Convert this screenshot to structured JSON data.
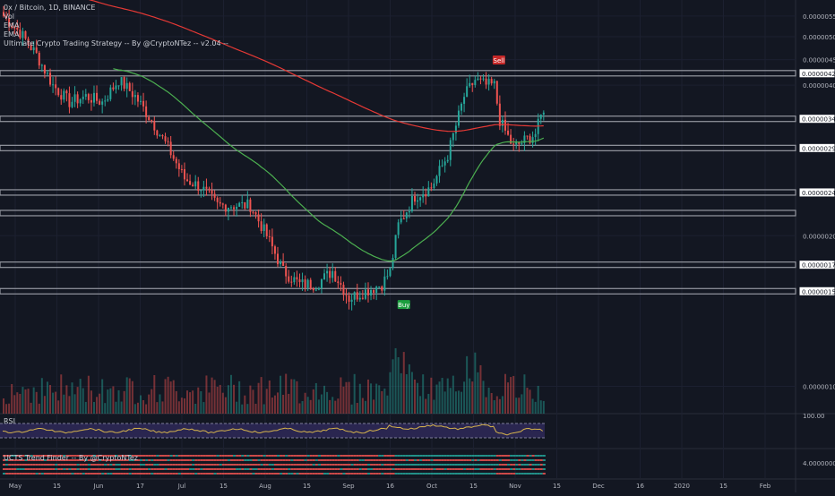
{
  "chart": {
    "symbol_line": "0x / Bitcoin, 1D, BINANCE",
    "indicators": [
      "Vol",
      "EMA",
      "EMA",
      "Ultimate Crypto Trading Strategy -- By @CryptoNTez -- v2.04 --"
    ],
    "rsi_label": "RSI",
    "trend_label": "UCTS Trend Finder -- By @CryptoNTez",
    "buy_label": "Buy",
    "sell_label": "Sell"
  },
  "colors": {
    "background": "#131722",
    "up": "#26a69a",
    "down": "#ef5350",
    "ema_fast": "#4caf50",
    "ema_slow": "#e53935",
    "rsi_line": "#d4b24c",
    "rsi_band": "#2a2650",
    "level_line": "#9598a1"
  },
  "chart_data": {
    "type": "candlestick",
    "y_scale": "log",
    "ylim": [
      9e-07,
      5.8e-06
    ],
    "y_ticks": [
      {
        "value": 5.5e-06,
        "label": "0.000005500"
      },
      {
        "value": 5e-06,
        "label": "0.000005000"
      },
      {
        "value": 4.5e-06,
        "label": "0.000004500"
      },
      {
        "value": 4e-06,
        "label": "0.000004000"
      },
      {
        "value": 2e-06,
        "label": "0.000002000"
      },
      {
        "value": 1e-06,
        "label": "0.000001000"
      }
    ],
    "level_labels": [
      {
        "value": 4.226e-06,
        "label": "0.000004226"
      },
      {
        "value": 3.426e-06,
        "label": "0.000003426"
      },
      {
        "value": 2.995e-06,
        "label": "0.000002995"
      },
      {
        "value": 2.441e-06,
        "label": "0.000002441"
      },
      {
        "value": 1.75e-06,
        "label": "0.000001750"
      },
      {
        "value": 1.549e-06,
        "label": "0.000001549"
      }
    ],
    "levels": [
      4.226e-06,
      3.426e-06,
      2.995e-06,
      2.441e-06,
      2.22e-06,
      1.75e-06,
      1.549e-06
    ],
    "x_labels": [
      "May",
      "15",
      "Jun",
      "17",
      "Jul",
      "15",
      "Aug",
      "15",
      "Sep",
      "16",
      "Oct",
      "15",
      "Nov",
      "15",
      "Dec",
      "16",
      "2020",
      "15",
      "Feb"
    ],
    "rsi_tick": "100.00",
    "trend_tick": "4.00000000",
    "anchors": [
      {
        "i": 0,
        "v": 5.5e-06
      },
      {
        "i": 6,
        "v": 5.1e-06
      },
      {
        "i": 12,
        "v": 4.6e-06
      },
      {
        "i": 18,
        "v": 4e-06
      },
      {
        "i": 24,
        "v": 3.7e-06
      },
      {
        "i": 30,
        "v": 3.8e-06
      },
      {
        "i": 36,
        "v": 3.7e-06
      },
      {
        "i": 42,
        "v": 4.1e-06
      },
      {
        "i": 48,
        "v": 3.8e-06
      },
      {
        "i": 54,
        "v": 3.4e-06
      },
      {
        "i": 60,
        "v": 3e-06
      },
      {
        "i": 66,
        "v": 2.6e-06
      },
      {
        "i": 72,
        "v": 2.5e-06
      },
      {
        "i": 78,
        "v": 2.3e-06
      },
      {
        "i": 84,
        "v": 2.3e-06
      },
      {
        "i": 90,
        "v": 2.3e-06
      },
      {
        "i": 96,
        "v": 2e-06
      },
      {
        "i": 102,
        "v": 1.7e-06
      },
      {
        "i": 108,
        "v": 1.6e-06
      },
      {
        "i": 114,
        "v": 1.6e-06
      },
      {
        "i": 120,
        "v": 1.7e-06
      },
      {
        "i": 126,
        "v": 1.5e-06
      },
      {
        "i": 132,
        "v": 1.55e-06
      },
      {
        "i": 138,
        "v": 1.6e-06
      },
      {
        "i": 141,
        "v": 1.7e-06
      },
      {
        "i": 144,
        "v": 2.1e-06
      },
      {
        "i": 150,
        "v": 2.4e-06
      },
      {
        "i": 156,
        "v": 2.5e-06
      },
      {
        "i": 162,
        "v": 2.9e-06
      },
      {
        "i": 168,
        "v": 3.8e-06
      },
      {
        "i": 172,
        "v": 4.1e-06
      },
      {
        "i": 176,
        "v": 4e-06
      },
      {
        "i": 179,
        "v": 4e-06
      },
      {
        "i": 181,
        "v": 3.4e-06
      },
      {
        "i": 186,
        "v": 3e-06
      },
      {
        "i": 190,
        "v": 3.1e-06
      },
      {
        "i": 194,
        "v": 3.2e-06
      },
      {
        "i": 197,
        "v": 3.6e-06
      }
    ]
  }
}
